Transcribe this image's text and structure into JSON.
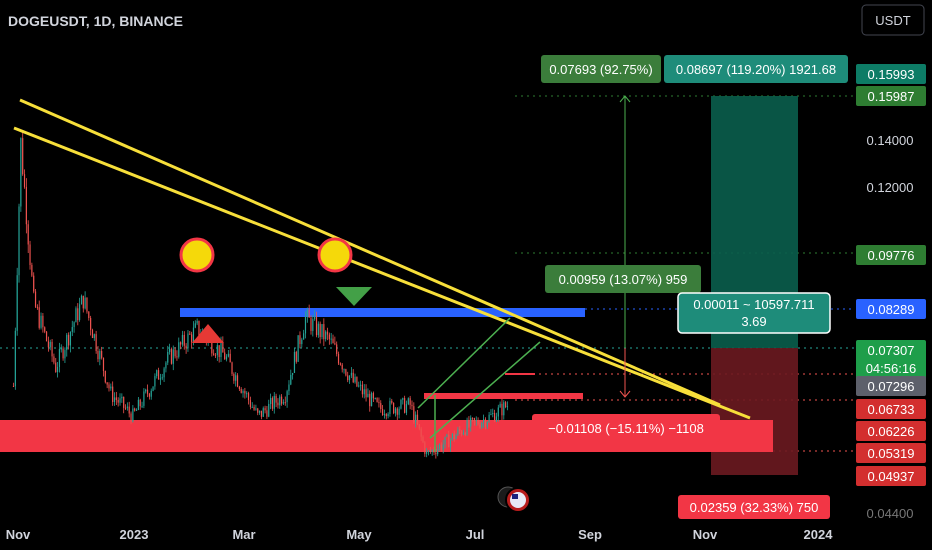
{
  "header": {
    "symbol": "DOGEUSDT, 1D, BINANCE",
    "currency_button": "USDT"
  },
  "colors": {
    "background": "#000000",
    "grid_dot": "#2a2e39",
    "candle_up": "#26a69a",
    "candle_down": "#ef5350",
    "trend": "#f7df3a",
    "zone_blue": "#2962ff",
    "zone_red": "#f23645",
    "target_green": "#089981",
    "label_green": "#388e3c",
    "label_teal": "#1e8c7a"
  },
  "axis": {
    "x_ticks": [
      "Nov",
      "2023",
      "Mar",
      "May",
      "Jul",
      "Sep",
      "Nov",
      "2024"
    ],
    "y_ticks": [
      "0.14000",
      "0.12000"
    ],
    "price_labels": [
      {
        "text": "0.15993",
        "color": "#0d7c66"
      },
      {
        "text": "0.15987",
        "color": "#2e7d32"
      },
      {
        "text": "0.09776",
        "color": "#2e7d32"
      },
      {
        "text": "0.08289",
        "color": "#2962ff"
      },
      {
        "text": "0.07307\n04:56:16",
        "color": "#1e9e4a"
      },
      {
        "text": "0.07296",
        "color": "#5d606b"
      },
      {
        "text": "0.06733",
        "color": "#d32f2f"
      },
      {
        "text": "0.06226",
        "color": "#d32f2f"
      },
      {
        "text": "0.05319",
        "color": "#d32f2f"
      },
      {
        "text": "0.04937",
        "color": "#d32f2f"
      }
    ],
    "partial_labels": [
      "0.04400"
    ]
  },
  "annotations": {
    "top_left_label": "0.07693 (92.75%)",
    "top_right_label": "0.08697 (119.20%) 1921.68",
    "mid_label": "0.00959 (13.07%) 959",
    "tooltip_line1": "0.00011 ~ 10597.711",
    "tooltip_line2": "3.69",
    "loss_label": "−0.01108 (−15.11%) −1108",
    "bottom_label": "0.02359 (32.33%) 750"
  },
  "chart_data": {
    "type": "candlestick",
    "symbol": "DOGEUSDT",
    "timeframe": "1D",
    "exchange": "BINANCE",
    "x_range": [
      "2022-10-25",
      "2024-01-20"
    ],
    "y_range": [
      0.044,
      0.165
    ],
    "approx_close_series": [
      [
        "2022-10-28",
        0.078
      ],
      [
        "2022-11-01",
        0.142
      ],
      [
        "2022-11-08",
        0.1
      ],
      [
        "2022-11-20",
        0.083
      ],
      [
        "2022-12-05",
        0.101
      ],
      [
        "2022-12-20",
        0.076
      ],
      [
        "2023-01-01",
        0.07
      ],
      [
        "2023-01-20",
        0.085
      ],
      [
        "2023-02-05",
        0.093
      ],
      [
        "2023-02-20",
        0.086
      ],
      [
        "2023-03-10",
        0.07
      ],
      [
        "2023-03-25",
        0.076
      ],
      [
        "2023-04-05",
        0.096
      ],
      [
        "2023-04-18",
        0.09
      ],
      [
        "2023-05-01",
        0.079
      ],
      [
        "2023-05-15",
        0.072
      ],
      [
        "2023-06-01",
        0.073
      ],
      [
        "2023-06-10",
        0.06
      ],
      [
        "2023-06-20",
        0.063
      ],
      [
        "2023-07-01",
        0.067
      ],
      [
        "2023-07-15",
        0.07
      ],
      [
        "2023-07-24",
        0.073
      ]
    ],
    "horizontal_levels": [
      0.15993,
      0.15987,
      0.09776,
      0.08289,
      0.07307,
      0.07296,
      0.06733,
      0.06226,
      0.05319,
      0.04937
    ]
  }
}
